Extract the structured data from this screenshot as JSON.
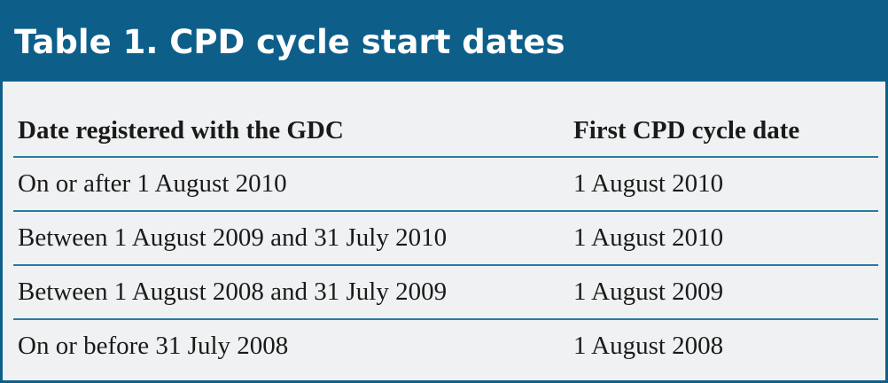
{
  "header": {
    "title": "Table 1. CPD cycle start dates"
  },
  "table": {
    "columns": [
      "Date registered with the GDC",
      "First CPD cycle date"
    ],
    "rows": [
      [
        "On or after 1 August 2010",
        "1 August 2010"
      ],
      [
        "Between 1 August 2009 and 31 July 2010",
        "1 August 2010"
      ],
      [
        "Between 1 August 2008 and 31 July 2009",
        "1 August 2009"
      ],
      [
        "On or before 31 July 2008",
        "1 August 2008"
      ]
    ]
  }
}
